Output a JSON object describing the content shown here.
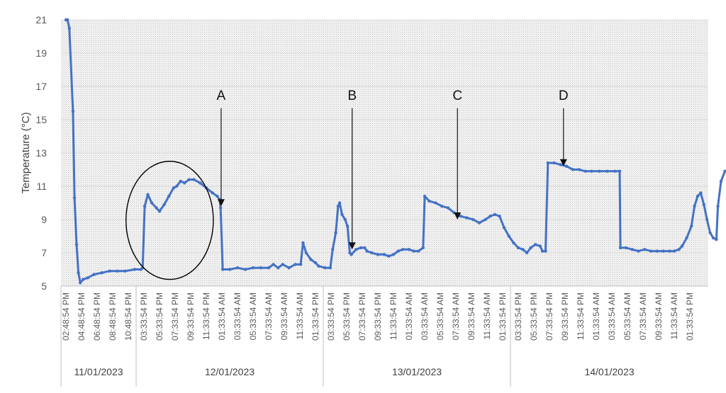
{
  "chart_data": {
    "type": "line",
    "title": "",
    "ylabel": "Temperature (°C)",
    "ylim": [
      5,
      21
    ],
    "yticks": [
      5,
      7,
      9,
      11,
      13,
      15,
      17,
      19,
      21
    ],
    "x_tick_labels": [
      "02:48:54 PM",
      "04:48:54 PM",
      "06:48:54 PM",
      "08:48:54 PM",
      "10:48:54 PM",
      "03:33:54 PM",
      "05:33:54 PM",
      "07:33:54 PM",
      "09:33:54 PM",
      "11:33:54 PM",
      "01:33:54 AM",
      "03:33:54 AM",
      "05:33:54 AM",
      "07:33:54 AM",
      "09:33:54 AM",
      "11:33:54 AM",
      "01:33:54 PM",
      "03:33:54 PM",
      "05:33:54 PM",
      "07:33:54 PM",
      "09:33:54 PM",
      "11:33:54 PM",
      "01:33:54 AM",
      "03:33:54 AM",
      "05:33:54 AM",
      "07:33:54 AM",
      "09:33:54 AM",
      "11:33:54 AM",
      "01:33:54 PM",
      "03:33:54 PM",
      "05:33:54 PM",
      "07:33:54 PM",
      "09:33:54 PM",
      "11:33:54 PM",
      "01:33:54 AM",
      "03:33:54 AM",
      "05:33:54 AM",
      "07:33:54 AM",
      "09:33:54 AM",
      "11:33:54 AM",
      "01:33:54 PM"
    ],
    "date_groups": [
      {
        "label": "11/01/2023",
        "start": 0,
        "end": 5
      },
      {
        "label": "12/01/2023",
        "start": 5,
        "end": 17
      },
      {
        "label": "13/01/2023",
        "start": 17,
        "end": 29
      },
      {
        "label": "14/01/2023",
        "start": 29,
        "end": 41
      }
    ],
    "series": [
      {
        "color": "#4472C4",
        "points": [
          [
            0,
            21
          ],
          [
            0.1,
            21
          ],
          [
            0.22,
            20.5
          ],
          [
            0.45,
            15.5
          ],
          [
            0.55,
            10.3
          ],
          [
            0.68,
            7.5
          ],
          [
            0.8,
            5.8
          ],
          [
            0.92,
            5.2
          ],
          [
            1.1,
            5.4
          ],
          [
            1.4,
            5.5
          ],
          [
            1.8,
            5.7
          ],
          [
            2.3,
            5.8
          ],
          [
            2.8,
            5.9
          ],
          [
            3.3,
            5.9
          ],
          [
            3.8,
            5.9
          ],
          [
            4.4,
            6.0
          ],
          [
            4.8,
            6.0
          ],
          [
            4.92,
            6.1
          ],
          [
            5.05,
            9.8
          ],
          [
            5.25,
            10.5
          ],
          [
            5.5,
            10.0
          ],
          [
            5.8,
            9.7
          ],
          [
            6.0,
            9.5
          ],
          [
            6.3,
            9.9
          ],
          [
            6.6,
            10.4
          ],
          [
            6.9,
            10.9
          ],
          [
            7.1,
            11.0
          ],
          [
            7.35,
            11.3
          ],
          [
            7.6,
            11.2
          ],
          [
            7.9,
            11.4
          ],
          [
            8.2,
            11.4
          ],
          [
            8.6,
            11.2
          ],
          [
            9.0,
            10.9
          ],
          [
            9.4,
            10.6
          ],
          [
            9.7,
            10.4
          ],
          [
            9.85,
            10.2
          ],
          [
            9.92,
            9.7
          ],
          [
            10.05,
            6.0
          ],
          [
            10.5,
            6.0
          ],
          [
            11.0,
            6.1
          ],
          [
            11.5,
            6.0
          ],
          [
            12.0,
            6.1
          ],
          [
            12.5,
            6.1
          ],
          [
            13.0,
            6.1
          ],
          [
            13.3,
            6.3
          ],
          [
            13.6,
            6.1
          ],
          [
            13.9,
            6.3
          ],
          [
            14.3,
            6.1
          ],
          [
            14.7,
            6.3
          ],
          [
            15.05,
            6.3
          ],
          [
            15.2,
            7.6
          ],
          [
            15.4,
            7.0
          ],
          [
            15.7,
            6.6
          ],
          [
            16.0,
            6.4
          ],
          [
            16.2,
            6.2
          ],
          [
            16.6,
            6.1
          ],
          [
            16.95,
            6.1
          ],
          [
            17.1,
            7.2
          ],
          [
            17.3,
            8.2
          ],
          [
            17.45,
            9.8
          ],
          [
            17.55,
            10.0
          ],
          [
            17.7,
            9.3
          ],
          [
            17.9,
            9.0
          ],
          [
            18.05,
            8.6
          ],
          [
            18.2,
            7.0
          ],
          [
            18.3,
            6.9
          ],
          [
            18.6,
            7.2
          ],
          [
            18.9,
            7.3
          ],
          [
            19.15,
            7.3
          ],
          [
            19.3,
            7.1
          ],
          [
            19.6,
            7.0
          ],
          [
            20.0,
            6.9
          ],
          [
            20.4,
            6.9
          ],
          [
            20.7,
            6.8
          ],
          [
            21.0,
            6.9
          ],
          [
            21.3,
            7.1
          ],
          [
            21.6,
            7.2
          ],
          [
            22.0,
            7.2
          ],
          [
            22.3,
            7.1
          ],
          [
            22.6,
            7.1
          ],
          [
            22.9,
            7.3
          ],
          [
            23.0,
            10.4
          ],
          [
            23.3,
            10.1
          ],
          [
            23.7,
            10.0
          ],
          [
            24.1,
            9.8
          ],
          [
            24.5,
            9.7
          ],
          [
            24.9,
            9.4
          ],
          [
            25.3,
            9.2
          ],
          [
            25.7,
            9.1
          ],
          [
            26.1,
            9.0
          ],
          [
            26.5,
            8.8
          ],
          [
            26.9,
            9.0
          ],
          [
            27.2,
            9.2
          ],
          [
            27.5,
            9.3
          ],
          [
            27.8,
            9.2
          ],
          [
            28.1,
            8.5
          ],
          [
            28.4,
            8.0
          ],
          [
            28.7,
            7.6
          ],
          [
            29.0,
            7.3
          ],
          [
            29.3,
            7.2
          ],
          [
            29.55,
            7.0
          ],
          [
            29.8,
            7.3
          ],
          [
            30.1,
            7.5
          ],
          [
            30.4,
            7.4
          ],
          [
            30.55,
            7.1
          ],
          [
            30.75,
            7.1
          ],
          [
            30.9,
            12.4
          ],
          [
            31.3,
            12.4
          ],
          [
            31.7,
            12.3
          ],
          [
            32.1,
            12.2
          ],
          [
            32.5,
            12.0
          ],
          [
            32.9,
            12.0
          ],
          [
            33.3,
            11.9
          ],
          [
            33.7,
            11.9
          ],
          [
            34.2,
            11.9
          ],
          [
            34.7,
            11.9
          ],
          [
            35.2,
            11.9
          ],
          [
            35.5,
            11.9
          ],
          [
            35.55,
            7.3
          ],
          [
            35.9,
            7.3
          ],
          [
            36.3,
            7.2
          ],
          [
            36.7,
            7.1
          ],
          [
            37.1,
            7.2
          ],
          [
            37.5,
            7.1
          ],
          [
            37.9,
            7.1
          ],
          [
            38.3,
            7.1
          ],
          [
            38.7,
            7.1
          ],
          [
            39.0,
            7.1
          ],
          [
            39.3,
            7.2
          ],
          [
            39.5,
            7.4
          ],
          [
            39.8,
            7.9
          ],
          [
            40.1,
            8.6
          ],
          [
            40.3,
            9.8
          ],
          [
            40.5,
            10.4
          ],
          [
            40.7,
            10.6
          ],
          [
            40.9,
            9.9
          ],
          [
            41.1,
            9.0
          ],
          [
            41.3,
            8.2
          ],
          [
            41.5,
            7.9
          ],
          [
            41.7,
            7.8
          ],
          [
            41.8,
            9.8
          ],
          [
            42.0,
            11.3
          ],
          [
            42.25,
            11.9
          ],
          [
            42.6,
            12.0
          ],
          [
            42.9,
            12.0
          ],
          [
            43.15,
            11.9
          ],
          [
            43.3,
            11.6
          ],
          [
            43.45,
            12.0
          ],
          [
            43.6,
            11.8
          ],
          [
            43.7,
            12.0
          ]
        ]
      }
    ],
    "annotations": [
      {
        "label": "A",
        "x": 9.95,
        "y": 9.8,
        "label_y": 16.2
      },
      {
        "label": "B",
        "x": 18.35,
        "y": 7.2,
        "label_y": 16.2
      },
      {
        "label": "C",
        "x": 25.1,
        "y": 9.0,
        "label_y": 16.2
      },
      {
        "label": "D",
        "x": 31.9,
        "y": 12.2,
        "label_y": 16.2
      }
    ],
    "ellipse": {
      "x_center": 6.65,
      "y_center": 8.95,
      "x_radius": 2.8,
      "y_radius": 3.55
    },
    "grid": true,
    "legend": "none"
  }
}
